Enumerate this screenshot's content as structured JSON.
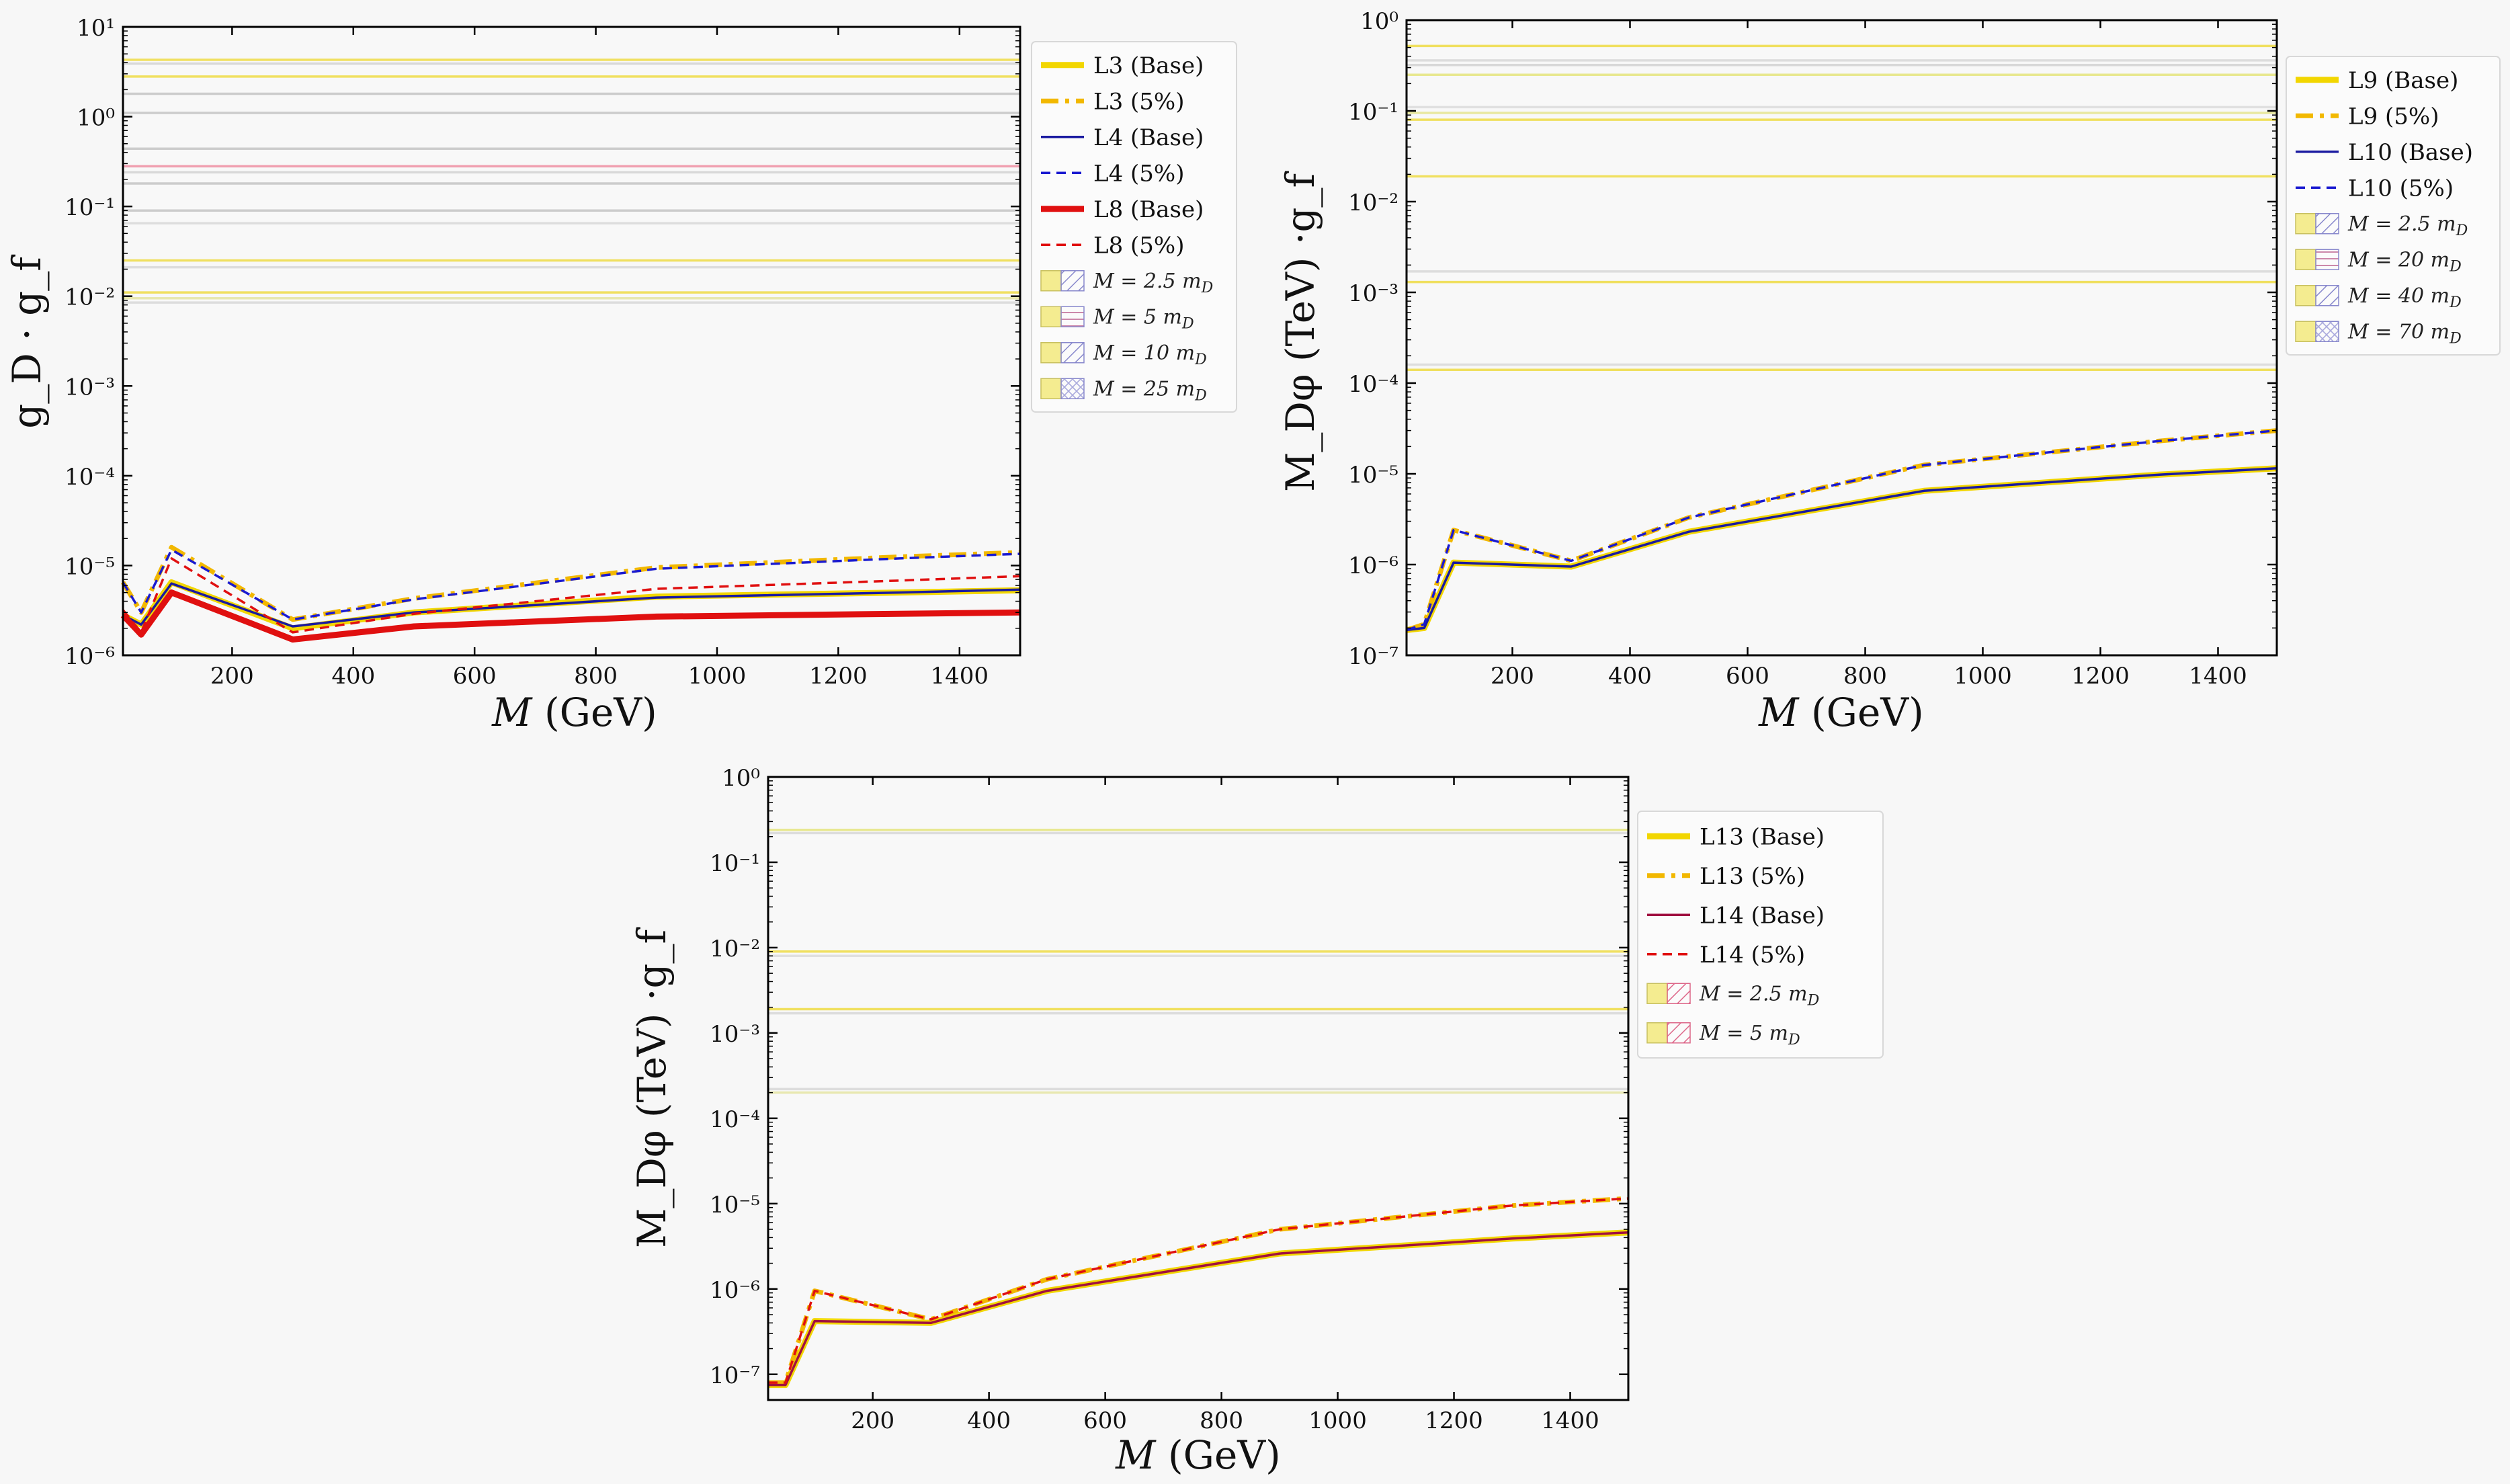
{
  "chart_data": [
    {
      "type": "line",
      "xlabel": "M (GeV)",
      "ylabel": "g_D · g_f",
      "xlim": [
        20,
        1500
      ],
      "ylim": [
        1e-06,
        10
      ],
      "yscale": "log",
      "x_ticks": [
        200,
        400,
        600,
        800,
        1000,
        1200,
        1400
      ],
      "y_tick_exponents": [
        -6,
        -5,
        -4,
        -3,
        -2,
        -1,
        0,
        1
      ],
      "legend_position": "outside-top-right",
      "series": [
        {
          "name": "L3 (Base)",
          "color": "#f2d600",
          "style": "solid-thick",
          "x": [
            20,
            50,
            100,
            300,
            500,
            900,
            1300,
            1500
          ],
          "y": [
            2.8e-06,
            2.2e-06,
            6.5e-06,
            2e-06,
            3e-06,
            4.5e-06,
            5e-06,
            5.3e-06
          ]
        },
        {
          "name": "L3 (5%)",
          "color": "#f2b800",
          "style": "dashdot-thick",
          "x": [
            20,
            50,
            100,
            300,
            500,
            900,
            1300,
            1500
          ],
          "y": [
            6.5e-06,
            3e-06,
            1.6e-05,
            2.5e-06,
            4.3e-06,
            9.5e-06,
            1.25e-05,
            1.4e-05
          ]
        },
        {
          "name": "L4 (Base)",
          "color": "#1a1aa0",
          "style": "solid",
          "x": [
            20,
            50,
            100,
            300,
            500,
            900,
            1300,
            1500
          ],
          "y": [
            2.8e-06,
            2.2e-06,
            6.3e-06,
            2.1e-06,
            3e-06,
            4.4e-06,
            5e-06,
            5.4e-06
          ]
        },
        {
          "name": "L4 (5%)",
          "color": "#1a1ad0",
          "style": "dashed",
          "x": [
            20,
            50,
            100,
            300,
            500,
            900,
            1300,
            1500
          ],
          "y": [
            6.5e-06,
            3e-06,
            1.5e-05,
            2.5e-06,
            4.2e-06,
            9.2e-06,
            1.2e-05,
            1.35e-05
          ]
        },
        {
          "name": "L8 (Base)",
          "color": "#e01010",
          "style": "solid-thick",
          "x": [
            20,
            50,
            100,
            300,
            500,
            900,
            1300,
            1500
          ],
          "y": [
            2.8e-06,
            1.7e-06,
            5e-06,
            1.5e-06,
            2.1e-06,
            2.7e-06,
            2.9e-06,
            3e-06
          ]
        },
        {
          "name": "L8 (5%)",
          "color": "#e01010",
          "style": "dashed",
          "x": [
            20,
            50,
            100,
            300,
            500,
            900,
            1300,
            1500
          ],
          "y": [
            3.2e-06,
            1.8e-06,
            1.2e-05,
            1.8e-06,
            2.9e-06,
            5.5e-06,
            6.8e-06,
            7.6e-06
          ]
        }
      ],
      "hlines": [
        {
          "y": 4.3,
          "color": "#f0e060"
        },
        {
          "y": 3.9,
          "color": "#d8d8d8"
        },
        {
          "y": 2.8,
          "color": "#f0e060"
        },
        {
          "y": 1.8,
          "color": "#cccccc"
        },
        {
          "y": 1.1,
          "color": "#cccccc"
        },
        {
          "y": 0.44,
          "color": "#cccccc"
        },
        {
          "y": 0.28,
          "color": "#f0a0b0"
        },
        {
          "y": 0.24,
          "color": "#d8d8d8"
        },
        {
          "y": 0.18,
          "color": "#cccccc"
        },
        {
          "y": 0.09,
          "color": "#cccccc"
        },
        {
          "y": 0.065,
          "color": "#dddddd"
        },
        {
          "y": 0.025,
          "color": "#f0e060"
        },
        {
          "y": 0.021,
          "color": "#dddddd"
        },
        {
          "y": 0.011,
          "color": "#f0e060"
        },
        {
          "y": 0.0095,
          "color": "#e8e8b0"
        },
        {
          "y": 0.0085,
          "color": "#dddddd"
        }
      ],
      "legend_region_labels": [
        "M = 2.5 m_D",
        "M = 5 m_D",
        "M = 10 m_D",
        "M = 25 m_D"
      ]
    },
    {
      "type": "line",
      "xlabel": "M (GeV)",
      "ylabel": "M_Dφ (TeV) ·g_f",
      "xlim": [
        20,
        1500
      ],
      "ylim": [
        1e-07,
        1
      ],
      "yscale": "log",
      "x_ticks": [
        200,
        400,
        600,
        800,
        1000,
        1200,
        1400
      ],
      "y_tick_exponents": [
        -7,
        -6,
        -5,
        -4,
        -3,
        -2,
        -1,
        0
      ],
      "legend_position": "outside-top-right",
      "series": [
        {
          "name": "L9 (Base)",
          "color": "#f2d600",
          "style": "solid-thick",
          "x": [
            20,
            50,
            100,
            300,
            500,
            900,
            1300,
            1500
          ],
          "y": [
            1.9e-07,
            2e-07,
            1.05e-06,
            9.5e-07,
            2.3e-06,
            6.5e-06,
            9.8e-06,
            1.15e-05
          ]
        },
        {
          "name": "L9 (5%)",
          "color": "#f2b800",
          "style": "dashdot-thick",
          "x": [
            20,
            50,
            100,
            300,
            500,
            900,
            1300,
            1500
          ],
          "y": [
            1.9e-07,
            2.2e-07,
            2.4e-06,
            1.1e-06,
            3.3e-06,
            1.25e-05,
            2.3e-05,
            3e-05
          ]
        },
        {
          "name": "L10 (Base)",
          "color": "#1a1aa0",
          "style": "solid",
          "x": [
            20,
            50,
            100,
            300,
            500,
            900,
            1300,
            1500
          ],
          "y": [
            1.9e-07,
            2e-07,
            1.05e-06,
            9.5e-07,
            2.3e-06,
            6.5e-06,
            9.8e-06,
            1.15e-05
          ]
        },
        {
          "name": "L10 (5%)",
          "color": "#1a1ad0",
          "style": "dashed",
          "x": [
            20,
            50,
            100,
            300,
            500,
            900,
            1300,
            1500
          ],
          "y": [
            1.9e-07,
            2.2e-07,
            2.4e-06,
            1.1e-06,
            3.3e-06,
            1.25e-05,
            2.3e-05,
            3e-05
          ]
        }
      ],
      "hlines": [
        {
          "y": 0.52,
          "color": "#f0e060"
        },
        {
          "y": 0.36,
          "color": "#dddddd"
        },
        {
          "y": 0.32,
          "color": "#d8d8d8"
        },
        {
          "y": 0.25,
          "color": "#e8e890"
        },
        {
          "y": 0.11,
          "color": "#e0e0e0"
        },
        {
          "y": 0.095,
          "color": "#e8e8a0"
        },
        {
          "y": 0.08,
          "color": "#f0e060"
        },
        {
          "y": 0.019,
          "color": "#f0e060"
        },
        {
          "y": 0.0017,
          "color": "#dddddd"
        },
        {
          "y": 0.0013,
          "color": "#f0e060"
        },
        {
          "y": 0.00016,
          "color": "#dddddd"
        },
        {
          "y": 0.00014,
          "color": "#f0e060"
        }
      ],
      "legend_region_labels": [
        "M = 2.5 m_D",
        "M = 20 m_D",
        "M = 40 m_D",
        "M = 70 m_D"
      ]
    },
    {
      "type": "line",
      "xlabel": "M (GeV)",
      "ylabel": "M_Dφ (TeV) ·g_f",
      "xlim": [
        20,
        1500
      ],
      "ylim": [
        5e-08,
        1
      ],
      "yscale": "log",
      "x_ticks": [
        200,
        400,
        600,
        800,
        1000,
        1200,
        1400
      ],
      "y_tick_exponents": [
        -7,
        -6,
        -5,
        -4,
        -3,
        -2,
        -1,
        0
      ],
      "legend_position": "outside-top-right",
      "series": [
        {
          "name": "L13 (Base)",
          "color": "#f2d600",
          "style": "solid-thick",
          "x": [
            20,
            50,
            100,
            300,
            500,
            900,
            1300,
            1500
          ],
          "y": [
            7.5e-08,
            7.5e-08,
            4.2e-07,
            4e-07,
            9.5e-07,
            2.6e-06,
            3.9e-06,
            4.6e-06
          ]
        },
        {
          "name": "L13 (5%)",
          "color": "#f2b800",
          "style": "dashdot-thick",
          "x": [
            20,
            50,
            100,
            300,
            500,
            900,
            1300,
            1500
          ],
          "y": [
            8e-08,
            8e-08,
            9.5e-07,
            4.4e-07,
            1.3e-06,
            5e-06,
            9.5e-06,
            1.15e-05
          ]
        },
        {
          "name": "L14 (Base)",
          "color": "#a01040",
          "style": "solid",
          "x": [
            20,
            50,
            100,
            300,
            500,
            900,
            1300,
            1500
          ],
          "y": [
            7.5e-08,
            7.5e-08,
            4.2e-07,
            4e-07,
            9.5e-07,
            2.6e-06,
            3.9e-06,
            4.6e-06
          ]
        },
        {
          "name": "L14 (5%)",
          "color": "#e01010",
          "style": "dashed",
          "x": [
            20,
            50,
            100,
            300,
            500,
            900,
            1300,
            1500
          ],
          "y": [
            8e-08,
            8e-08,
            9.5e-07,
            4.4e-07,
            1.3e-06,
            5e-06,
            9.5e-06,
            1.15e-05
          ]
        }
      ],
      "hlines": [
        {
          "y": 0.24,
          "color": "#e8e890"
        },
        {
          "y": 0.22,
          "color": "#dddddd"
        },
        {
          "y": 0.009,
          "color": "#f0e060"
        },
        {
          "y": 0.008,
          "color": "#e0e0e0"
        },
        {
          "y": 0.0019,
          "color": "#f0e060"
        },
        {
          "y": 0.0017,
          "color": "#dddddd"
        },
        {
          "y": 0.00022,
          "color": "#dddddd"
        },
        {
          "y": 0.0002,
          "color": "#e8e8b0"
        }
      ],
      "legend_region_labels": [
        "M = 2.5 m_D",
        "M = 5 m_D"
      ]
    }
  ]
}
